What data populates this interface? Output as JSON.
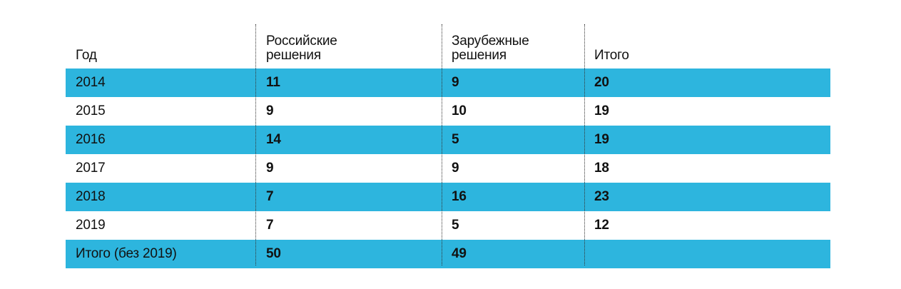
{
  "table": {
    "headers": [
      "Год",
      "Российские\nрешения",
      "Зарубежные\nрешения",
      "Итого"
    ],
    "rows": [
      {
        "year": "2014",
        "russian": "11",
        "foreign": "9",
        "total": "20",
        "shaded": true
      },
      {
        "year": "2015",
        "russian": "9",
        "foreign": "10",
        "total": "19",
        "shaded": false
      },
      {
        "year": "2016",
        "russian": "14",
        "foreign": "5",
        "total": "19",
        "shaded": true
      },
      {
        "year": "2017",
        "russian": "9",
        "foreign": "9",
        "total": "18",
        "shaded": false
      },
      {
        "year": "2018",
        "russian": "7",
        "foreign": "16",
        "total": "23",
        "shaded": true
      },
      {
        "year": "2019",
        "russian": "7",
        "foreign": "5",
        "total": "12",
        "shaded": false
      },
      {
        "year": "Итого (без 2019)",
        "russian": "50",
        "foreign": "49",
        "total": "",
        "shaded": true
      }
    ],
    "colors": {
      "row_highlight": "#2db5de",
      "divider": "#333333",
      "text": "#111111"
    }
  }
}
